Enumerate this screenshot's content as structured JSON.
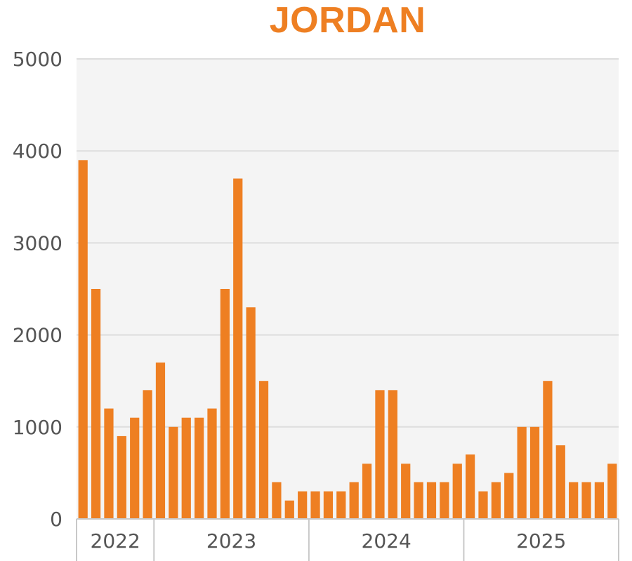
{
  "chart_data": {
    "type": "bar",
    "title": "JORDAN",
    "xlabel": "",
    "ylabel": "",
    "ylim": [
      0,
      5000
    ],
    "yticks": [
      0,
      1000,
      2000,
      3000,
      4000,
      5000
    ],
    "grid": true,
    "year_groups": [
      {
        "label": "2022",
        "count": 6
      },
      {
        "label": "2023",
        "count": 12
      },
      {
        "label": "2024",
        "count": 12
      },
      {
        "label": "2025",
        "count": 12
      }
    ],
    "values": [
      3900,
      2500,
      1200,
      900,
      1100,
      1400,
      1700,
      1000,
      1100,
      1100,
      1200,
      2500,
      3700,
      2300,
      1500,
      400,
      200,
      300,
      300,
      300,
      300,
      400,
      600,
      1400,
      1400,
      600,
      400,
      400,
      400,
      600,
      700,
      300,
      400,
      500,
      1000,
      1000,
      1500,
      800,
      400,
      400,
      400,
      600
    ],
    "colors": {
      "bar": "#ee7f22",
      "title": "#ee7f22",
      "plot_bg": "#f4f4f4",
      "grid": "#dddddd",
      "axis": "#c8c8c8"
    }
  }
}
